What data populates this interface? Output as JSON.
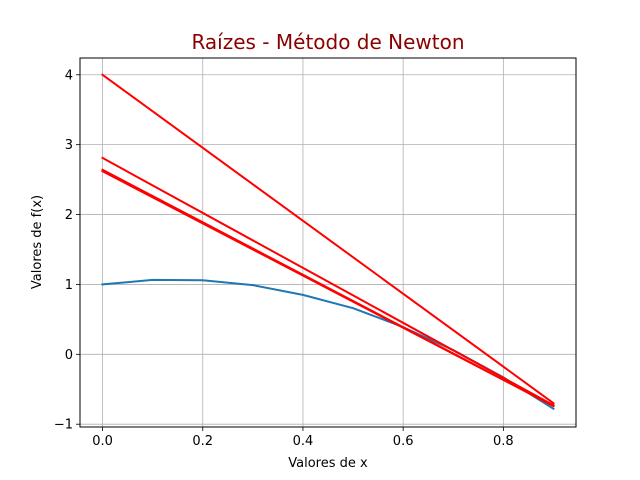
{
  "chart_data": {
    "type": "line",
    "title": "Raízes - Método de Newton",
    "title_color": "#8b0000",
    "xlabel": "Valores de x",
    "ylabel": "Valores de f(x)",
    "xlim": [
      -0.045,
      0.945
    ],
    "ylim": [
      -1.04,
      4.24
    ],
    "xticks": [
      0.0,
      0.2,
      0.4,
      0.6,
      0.8
    ],
    "xtick_labels": [
      "0.0",
      "0.2",
      "0.4",
      "0.6",
      "0.8"
    ],
    "yticks": [
      -1,
      0,
      1,
      2,
      3,
      4
    ],
    "ytick_labels": [
      "−1",
      "0",
      "1",
      "2",
      "3",
      "4"
    ],
    "grid": true,
    "series": [
      {
        "color": "#1f77b4",
        "x": [
          0.0,
          0.1,
          0.2,
          0.3,
          0.4,
          0.5,
          0.6,
          0.7,
          0.8,
          0.9
        ],
        "y": [
          1.0,
          1.065,
          1.061,
          0.99,
          0.85,
          0.66,
          0.39,
          0.06,
          -0.33,
          -0.78
        ]
      },
      {
        "color": "#ff0000",
        "x": [
          0.0,
          0.9
        ],
        "y": [
          4.0,
          -0.7
        ]
      },
      {
        "color": "#ff0000",
        "x": [
          0.0,
          0.9
        ],
        "y": [
          2.81,
          -0.73
        ]
      },
      {
        "color": "#ff0000",
        "x": [
          0.0,
          0.9
        ],
        "y": [
          2.64,
          -0.74
        ]
      },
      {
        "color": "#ff0000",
        "x": [
          0.0,
          0.9
        ],
        "y": [
          2.62,
          -0.74
        ]
      }
    ]
  }
}
